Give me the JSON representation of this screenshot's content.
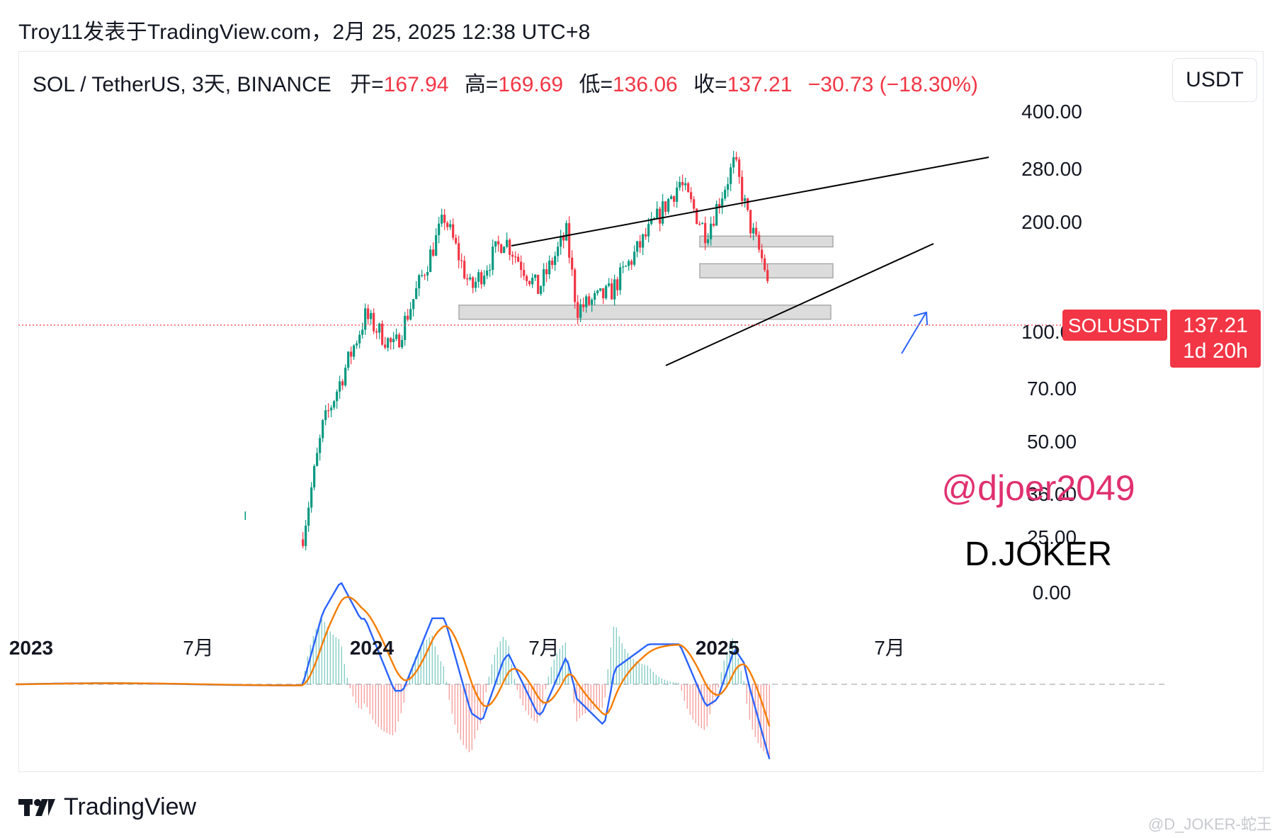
{
  "caption": "Troy11发表于TradingView.com，2月 25, 2025 12:38 UTC+8",
  "legend": {
    "symbol": "SOL / TetherUS, 3天, BINANCE",
    "open_label": "开=",
    "open_value": "167.94",
    "high_label": "高=",
    "high_value": "169.69",
    "low_label": "低=",
    "low_value": "136.06",
    "close_label": "收=",
    "close_value": "137.21",
    "change": "−30.73 (−18.30%)"
  },
  "currency_button": "USDT",
  "price_tag": {
    "symbol": "SOLUSDT",
    "price": "137.21",
    "countdown": "1d 20h"
  },
  "annotations": {
    "handle": "@djoer2049",
    "signature": "D.JOKER"
  },
  "brand": "TradingView",
  "corner_watermark": "@D_JOKER-蛇王",
  "colors": {
    "up": "#089981",
    "down": "#f23645",
    "macd": "#2962ff",
    "signal": "#f57c00",
    "handle": "#e0306f"
  },
  "chart_data": {
    "type": "candlestick",
    "scale": "log",
    "y_ticks": [
      "400.00",
      "280.00",
      "200.00",
      "100.00",
      "70.00",
      "50.00",
      "36.00",
      "25.00",
      "0.00"
    ],
    "x_ticks": [
      "2023",
      "7月",
      "2024",
      "7月",
      "2025",
      "7月"
    ],
    "last_close": 137.21,
    "approx_path": [
      {
        "date": "2023-10-20",
        "price": 28
      },
      {
        "date": "2023-11-10",
        "price": 55
      },
      {
        "date": "2023-12-25",
        "price": 110
      },
      {
        "date": "2024-01-25",
        "price": 90
      },
      {
        "date": "2024-03-18",
        "price": 205
      },
      {
        "date": "2024-04-15",
        "price": 130
      },
      {
        "date": "2024-05-20",
        "price": 180
      },
      {
        "date": "2024-06-25",
        "price": 130
      },
      {
        "date": "2024-07-25",
        "price": 185
      },
      {
        "date": "2024-08-05",
        "price": 115
      },
      {
        "date": "2024-09-10",
        "price": 128
      },
      {
        "date": "2024-11-22",
        "price": 255
      },
      {
        "date": "2024-12-20",
        "price": 185
      },
      {
        "date": "2025-01-19",
        "price": 290
      },
      {
        "date": "2025-02-03",
        "price": 200
      },
      {
        "date": "2025-02-25",
        "price": 137.21
      }
    ],
    "support_zones": [
      [
        170,
        182
      ],
      [
        140,
        153
      ],
      [
        108,
        118
      ]
    ],
    "macd": {
      "zero_label": "0.00"
    }
  }
}
